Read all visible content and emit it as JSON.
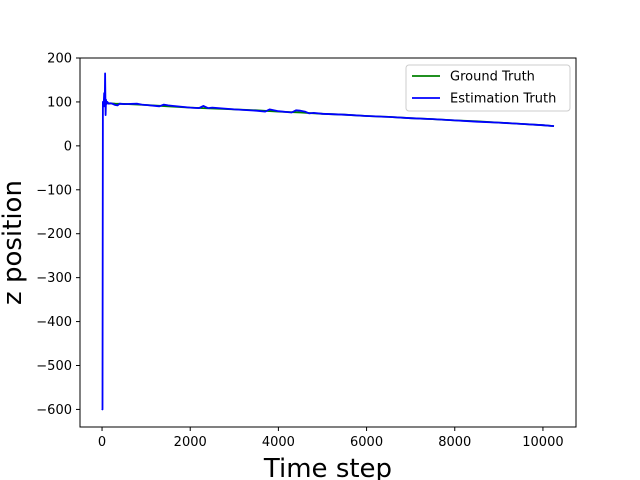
{
  "chart_data": {
    "type": "line",
    "title": "",
    "xlabel": "Time step",
    "ylabel": "z position",
    "xlim": [
      -500,
      10750
    ],
    "ylim": [
      -640,
      200
    ],
    "xticks": [
      0,
      2000,
      4000,
      6000,
      8000,
      10000
    ],
    "yticks": [
      200,
      100,
      0,
      -100,
      -200,
      -300,
      -400,
      -500,
      -600
    ],
    "xtick_labels": [
      "0",
      "2000",
      "4000",
      "6000",
      "8000",
      "10000"
    ],
    "ytick_labels": [
      "200",
      "100",
      "0",
      "−100",
      "−200",
      "−300",
      "−400",
      "−500",
      "−600"
    ],
    "grid": false,
    "legend_position": "top-right",
    "series": [
      {
        "name": "Ground Truth",
        "color": "#008000",
        "x": [
          0,
          100,
          300,
          600,
          1000,
          1500,
          2000,
          2500,
          3000,
          3500,
          4000,
          4500,
          5000,
          5500,
          6000,
          6500,
          7000,
          7500,
          8000,
          8500,
          9000,
          9500,
          10000,
          10250
        ],
        "y": [
          97,
          97,
          96,
          95,
          93,
          90,
          87,
          85,
          83,
          81,
          78,
          76,
          73,
          71,
          68,
          66,
          63,
          61,
          58,
          56,
          53,
          50,
          47,
          45
        ]
      },
      {
        "name": "Estimation Truth",
        "color": "#0000ff",
        "x": [
          0,
          10,
          20,
          35,
          50,
          60,
          70,
          80,
          90,
          100,
          120,
          150,
          200,
          300,
          350,
          400,
          500,
          800,
          900,
          1000,
          1300,
          1400,
          1500,
          1600,
          2000,
          2200,
          2300,
          2400,
          2500,
          3000,
          3500,
          3700,
          3800,
          4000,
          4300,
          4400,
          4500,
          4600,
          4700,
          4800,
          5000,
          5500,
          6000,
          6500,
          7000,
          7500,
          8000,
          8500,
          9000,
          9500,
          10000,
          10250
        ],
        "y": [
          -598,
          -600,
          100,
          90,
          120,
          90,
          165,
          70,
          105,
          95,
          100,
          96,
          97,
          93,
          92,
          96,
          95,
          96,
          94,
          93,
          90,
          94,
          92,
          91,
          87,
          86,
          91,
          86,
          87,
          83,
          80,
          78,
          83,
          79,
          76,
          81,
          80,
          78,
          74,
          75,
          73,
          71,
          68,
          66,
          63,
          61,
          58,
          55,
          53,
          50,
          47,
          45
        ]
      }
    ]
  }
}
